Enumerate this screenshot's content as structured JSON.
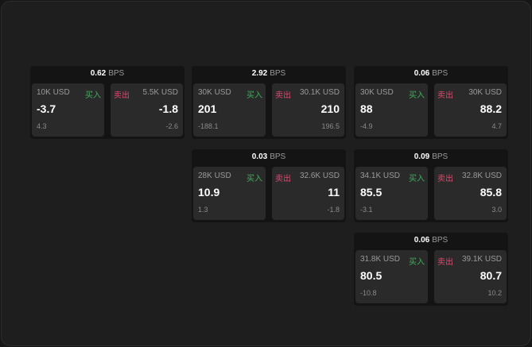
{
  "unit": "BPS",
  "buy_label": "买入",
  "sell_label": "卖出",
  "colors": {
    "buy": "#3fae5e",
    "sell": "#e0486e"
  },
  "widgets": [
    {
      "spread": "0.62",
      "buy": {
        "qty": "10K USD",
        "price": "-3.7",
        "change": "4.3"
      },
      "sell": {
        "qty": "5.5K USD",
        "price": "-1.8",
        "change": "-2.6"
      }
    },
    {
      "spread": "2.92",
      "buy": {
        "qty": "30K USD",
        "price": "201",
        "change": "-188.1"
      },
      "sell": {
        "qty": "30.1K USD",
        "price": "210",
        "change": "196.5"
      }
    },
    {
      "spread": "0.06",
      "buy": {
        "qty": "30K USD",
        "price": "88",
        "change": "-4.9"
      },
      "sell": {
        "qty": "30K USD",
        "price": "88.2",
        "change": "4.7"
      }
    },
    {
      "spread": "0.03",
      "buy": {
        "qty": "28K USD",
        "price": "10.9",
        "change": "1.3"
      },
      "sell": {
        "qty": "32.6K USD",
        "price": "11",
        "change": "-1.8"
      }
    },
    {
      "spread": "0.09",
      "buy": {
        "qty": "34.1K USD",
        "price": "85.5",
        "change": "-3.1"
      },
      "sell": {
        "qty": "32.8K USD",
        "price": "85.8",
        "change": "3.0"
      }
    },
    {
      "spread": "0.06",
      "buy": {
        "qty": "31.8K USD",
        "price": "80.5",
        "change": "-10.8"
      },
      "sell": {
        "qty": "39.1K USD",
        "price": "80.7",
        "change": "10.2"
      }
    }
  ]
}
